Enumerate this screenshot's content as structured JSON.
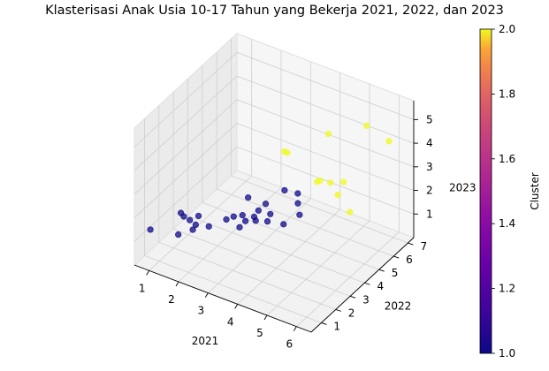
{
  "chart_data": {
    "type": "scatter",
    "title": "Klasterisasi Anak Usia 10-17 Tahun yang Bekerja 2021, 2022, dan 2023",
    "xlabel": "2021",
    "ylabel": "2022",
    "zlabel": "2023",
    "x_ticks": [
      "1",
      "2",
      "3",
      "4",
      "5",
      "6"
    ],
    "y_ticks": [
      "1",
      "2",
      "3",
      "4",
      "5",
      "6",
      "7"
    ],
    "z_ticks": [
      "1",
      "2",
      "3",
      "4",
      "5"
    ],
    "xlim": [
      0.5,
      6.5
    ],
    "ylim": [
      0.3,
      7.4
    ],
    "zlim": [
      0,
      5.8
    ],
    "grid": true,
    "colorbar": {
      "label": "Cluster",
      "colormap": "plasma",
      "range": [
        1.0,
        2.0
      ],
      "ticks": [
        "1.0",
        "1.2",
        "1.4",
        "1.6",
        "1.8",
        "2.0"
      ]
    },
    "points": [
      {
        "x": 0.7,
        "y": 1.0,
        "z": 1.2,
        "cluster": 1
      },
      {
        "x": 1.5,
        "y": 1.3,
        "z": 1.2,
        "cluster": 1
      },
      {
        "x": 1.0,
        "y": 2.5,
        "z": 1.2,
        "cluster": 1
      },
      {
        "x": 1.1,
        "y": 2.5,
        "z": 1.1,
        "cluster": 1
      },
      {
        "x": 1.4,
        "y": 2.3,
        "z": 1.2,
        "cluster": 1
      },
      {
        "x": 1.6,
        "y": 2.3,
        "z": 1.1,
        "cluster": 1
      },
      {
        "x": 1.6,
        "y": 2.1,
        "z": 1.0,
        "cluster": 1
      },
      {
        "x": 1.9,
        "y": 2.6,
        "z": 1.0,
        "cluster": 1
      },
      {
        "x": 1.5,
        "y": 2.7,
        "z": 1.2,
        "cluster": 1
      },
      {
        "x": 2.2,
        "y": 3.2,
        "z": 1.1,
        "cluster": 1
      },
      {
        "x": 2.3,
        "y": 3.5,
        "z": 1.1,
        "cluster": 1
      },
      {
        "x": 2.6,
        "y": 3.3,
        "z": 0.9,
        "cluster": 1
      },
      {
        "x": 2.7,
        "y": 3.5,
        "z": 1.1,
        "cluster": 1
      },
      {
        "x": 2.6,
        "y": 3.5,
        "z": 1.3,
        "cluster": 1
      },
      {
        "x": 2.8,
        "y": 3.9,
        "z": 1.1,
        "cluster": 1
      },
      {
        "x": 3.0,
        "y": 3.6,
        "z": 1.2,
        "cluster": 1
      },
      {
        "x": 2.8,
        "y": 4.2,
        "z": 1.2,
        "cluster": 1
      },
      {
        "x": 3.3,
        "y": 3.8,
        "z": 1.2,
        "cluster": 1
      },
      {
        "x": 3.3,
        "y": 4.0,
        "z": 1.4,
        "cluster": 1
      },
      {
        "x": 2.4,
        "y": 4.3,
        "z": 1.5,
        "cluster": 1
      },
      {
        "x": 2.8,
        "y": 4.7,
        "z": 1.2,
        "cluster": 1
      },
      {
        "x": 3.7,
        "y": 4.1,
        "z": 1.1,
        "cluster": 1
      },
      {
        "x": 3.9,
        "y": 4.8,
        "z": 1.2,
        "cluster": 1
      },
      {
        "x": 3.5,
        "y": 5.5,
        "z": 1.1,
        "cluster": 1
      },
      {
        "x": 2.9,
        "y": 5.8,
        "z": 1.2,
        "cluster": 1
      },
      {
        "x": 3.3,
        "y": 5.9,
        "z": 1.2,
        "cluster": 1
      },
      {
        "x": 2.5,
        "y": 6.6,
        "z": 2.2,
        "cluster": 2
      },
      {
        "x": 2.6,
        "y": 6.6,
        "z": 2.2,
        "cluster": 2
      },
      {
        "x": 4.2,
        "y": 5.4,
        "z": 2.4,
        "cluster": 2
      },
      {
        "x": 4.3,
        "y": 5.4,
        "z": 2.5,
        "cluster": 2
      },
      {
        "x": 4.6,
        "y": 5.5,
        "z": 2.5,
        "cluster": 2
      },
      {
        "x": 4.9,
        "y": 5.8,
        "z": 2.5,
        "cluster": 2
      },
      {
        "x": 5.1,
        "y": 5.0,
        "z": 2.5,
        "cluster": 2
      },
      {
        "x": 5.9,
        "y": 4.2,
        "z": 2.6,
        "cluster": 2
      },
      {
        "x": 3.9,
        "y": 6.8,
        "z": 3.5,
        "cluster": 2
      },
      {
        "x": 5.1,
        "y": 7.0,
        "z": 4.3,
        "cluster": 2
      },
      {
        "x": 6.1,
        "y": 6.5,
        "z": 4.4,
        "cluster": 2
      }
    ]
  }
}
